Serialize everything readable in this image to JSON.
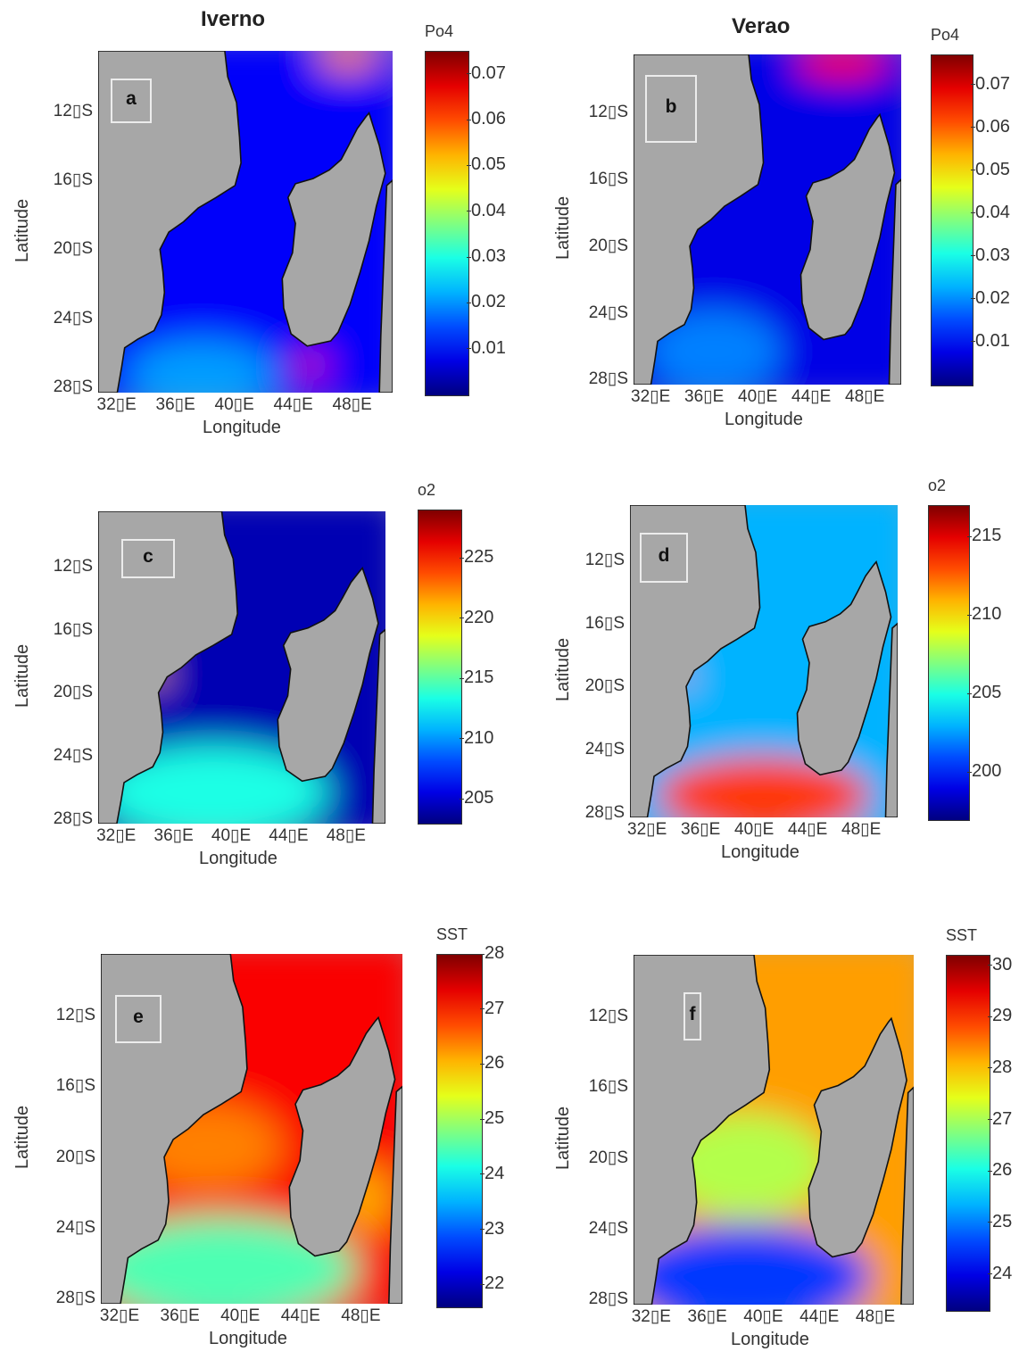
{
  "headers": {
    "left": "Iverno",
    "right": "Verao"
  },
  "axes": {
    "xlabel": "Longitude",
    "ylabel": "Latitude",
    "lon_ticks": [
      "32▯E",
      "36▯E",
      "40▯E",
      "44▯E",
      "48▯E"
    ],
    "lat_ticks": [
      "12▯S",
      "16▯S",
      "20▯S",
      "24▯S",
      "28▯S"
    ]
  },
  "panels": [
    {
      "id": "a",
      "label": "a",
      "variable": "Po4",
      "season": "Iverno",
      "colorbar": {
        "title": "Po4",
        "ticks": [
          "0.07",
          "0.06",
          "0.05",
          "0.04",
          "0.03",
          "0.02",
          "0.01"
        ],
        "min": 0.0,
        "max": 0.075
      }
    },
    {
      "id": "b",
      "label": "b",
      "variable": "Po4",
      "season": "Verao",
      "colorbar": {
        "title": "Po4",
        "ticks": [
          "0.07",
          "0.06",
          "0.05",
          "0.04",
          "0.03",
          "0.02",
          "0.01"
        ],
        "min": 0.0,
        "max": 0.077
      }
    },
    {
      "id": "c",
      "label": "c",
      "variable": "o2",
      "season": "Iverno",
      "colorbar": {
        "title": "o2",
        "ticks": [
          "225",
          "220",
          "215",
          "210",
          "205"
        ],
        "min": 203,
        "max": 229
      }
    },
    {
      "id": "d",
      "label": "d",
      "variable": "o2",
      "season": "Verao",
      "colorbar": {
        "title": "o2",
        "ticks": [
          "215",
          "210",
          "205",
          "200"
        ],
        "min": 197,
        "max": 217
      }
    },
    {
      "id": "e",
      "label": "e",
      "variable": "SST",
      "season": "Iverno",
      "colorbar": {
        "title": "SST",
        "ticks": [
          "28",
          "27",
          "26",
          "25",
          "24",
          "23",
          "22"
        ],
        "min": 21.6,
        "max": 28
      }
    },
    {
      "id": "f",
      "label": "f",
      "variable": "SST",
      "season": "Verao",
      "colorbar": {
        "title": "SST",
        "ticks": [
          "30",
          "29",
          "28",
          "27",
          "26",
          "25",
          "24"
        ],
        "min": 23.3,
        "max": 30.2
      }
    }
  ],
  "colors": {
    "land": "#a7a7a7",
    "colormap": "jet"
  }
}
